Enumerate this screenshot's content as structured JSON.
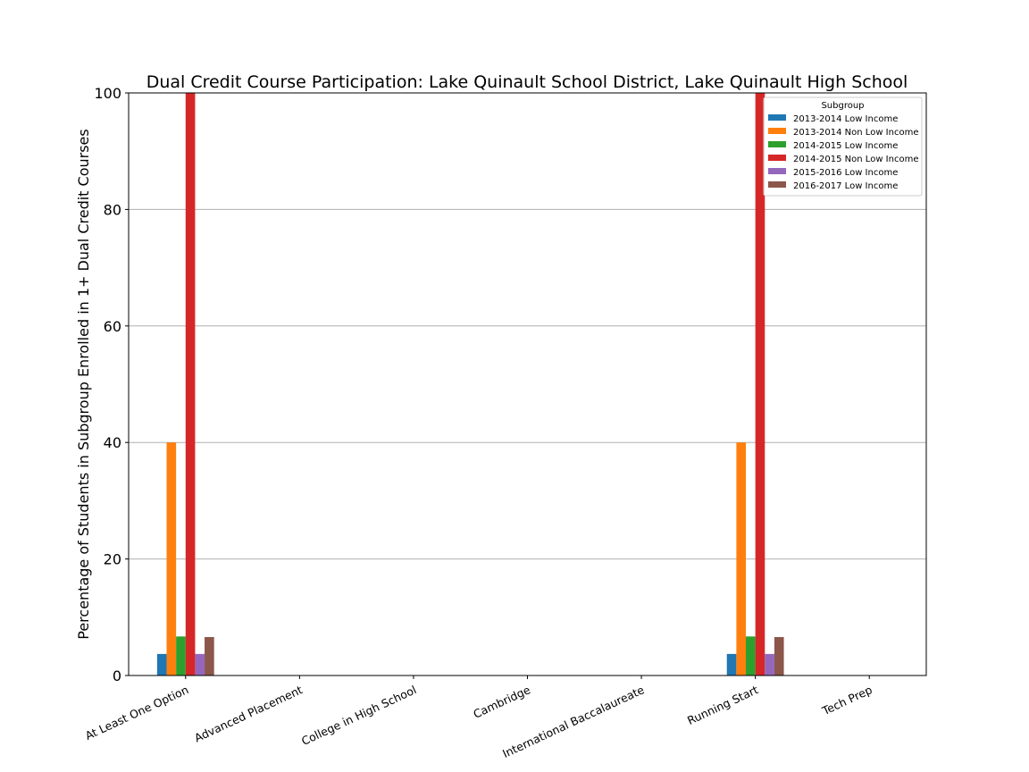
{
  "chart_data": {
    "type": "bar",
    "title": "Dual Credit Course Participation: Lake Quinault School District, Lake Quinault High School",
    "xlabel": "",
    "ylabel": "Percentage of Students in Subgroup Enrolled in 1+ Dual Credit Courses",
    "ylim": [
      0,
      100
    ],
    "yticks": [
      "0",
      "20",
      "40",
      "60",
      "80",
      "100"
    ],
    "grid": "y",
    "categories": [
      "At Least One Option",
      "Advanced Placement",
      "College in High School",
      "Cambridge",
      "International Baccalaureate",
      "Running Start",
      "Tech Prep"
    ],
    "legend": {
      "title": "Subgroup",
      "placement": "top-right"
    },
    "series": [
      {
        "name": "2013-2014 Low Income",
        "color": "#1f77b4",
        "values": [
          3.7,
          0,
          0,
          0,
          0,
          3.7,
          0
        ]
      },
      {
        "name": "2013-2014 Non Low Income",
        "color": "#ff7f0e",
        "values": [
          40,
          0,
          0,
          0,
          0,
          40,
          0
        ]
      },
      {
        "name": "2014-2015 Low Income",
        "color": "#2ca02c",
        "values": [
          6.7,
          0,
          0,
          0,
          0,
          6.7,
          0
        ]
      },
      {
        "name": "2014-2015 Non Low Income",
        "color": "#d62728",
        "values": [
          100,
          0,
          0,
          0,
          0,
          100,
          0
        ]
      },
      {
        "name": "2015-2016 Low Income",
        "color": "#9467bd",
        "values": [
          3.7,
          0,
          0,
          0,
          0,
          3.7,
          0
        ]
      },
      {
        "name": "2016-2017 Low Income",
        "color": "#8c564b",
        "values": [
          6.6,
          0,
          0,
          0,
          0,
          6.6,
          0
        ]
      }
    ]
  }
}
